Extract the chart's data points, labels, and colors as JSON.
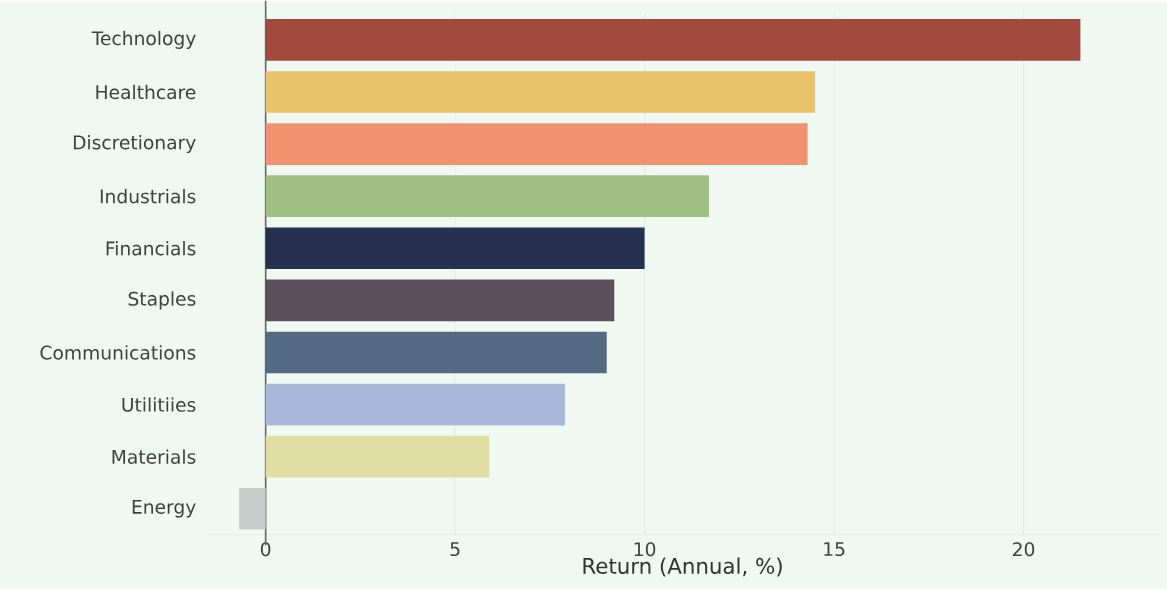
{
  "chart_data": {
    "type": "bar",
    "orientation": "horizontal",
    "xlabel": "Return (Annual, %)",
    "categories": [
      "Technology",
      "Healthcare",
      "Discretionary",
      "Industrials",
      "Financials",
      "Staples",
      "Communications",
      "Utilitiies",
      "Materials",
      "Energy"
    ],
    "values": [
      21.5,
      14.5,
      14.3,
      11.7,
      10.0,
      9.2,
      9.0,
      7.9,
      5.9,
      -0.7
    ],
    "colors": [
      "#a34a3e",
      "#e8c36b",
      "#f0926f",
      "#a0c184",
      "#25314f",
      "#5c4f5c",
      "#546a82",
      "#a9b9db",
      "#e0dea2",
      "#c6cfcb"
    ],
    "xlim": [
      -1.6,
      23.6
    ],
    "xticks": [
      0,
      5,
      10,
      15,
      20
    ],
    "grid": "x"
  }
}
